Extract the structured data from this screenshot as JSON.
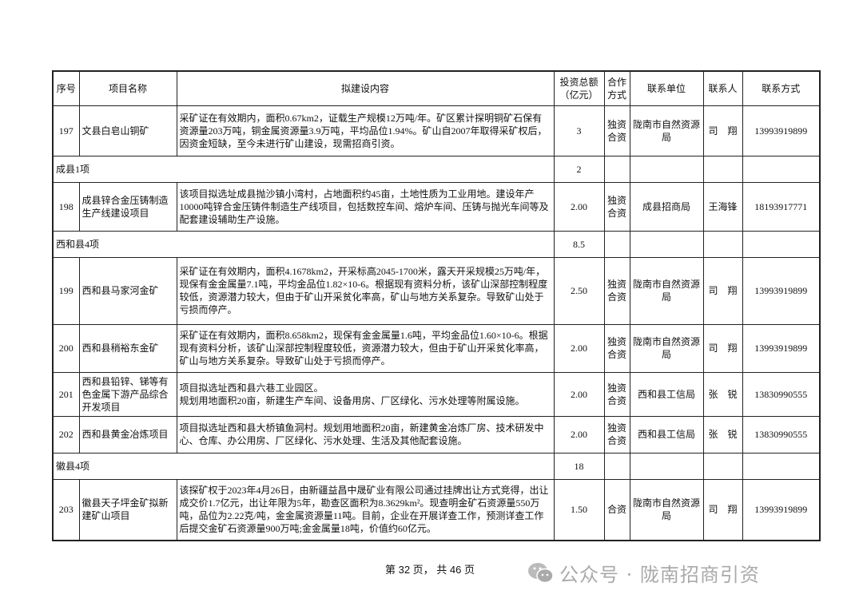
{
  "table": {
    "headers": [
      "序号",
      "项目名称",
      "拟建设内容",
      "投资总额（亿元）",
      "合作方式",
      "联系单位",
      "联系人",
      "联系方式"
    ],
    "rows": [
      {
        "type": "item",
        "no": "197",
        "name": "文县白皂山铜矿",
        "content": "采矿证在有效期内，面积0.67km2，证载生产规模12万吨/年。矿区累计探明铜矿石保有资源量203万吨，铜金属资源量3.9万吨，平均品位1.94%。矿山自2007年取得采矿权后，因资金短缺，至今未进行矿山建设，现需招商引资。",
        "invest": "3",
        "coop": "独资合资",
        "unit": "陇南市自然资源局",
        "person": "司　翔",
        "phone": "13993919899"
      },
      {
        "type": "group",
        "label": "成县1项",
        "invest": "2"
      },
      {
        "type": "item",
        "no": "198",
        "name": "成县锌合金压铸制造生产线建设项目",
        "content": "该项目拟选址成县抛沙镇小湾村，占地面积约45亩，土地性质为工业用地。建设年产10000吨锌合金压铸件制造生产线项目，包括数控车间、熔炉车间、压铸与抛光车间等及配套建设辅助生产设施。",
        "invest": "2.00",
        "coop": "独资合资",
        "unit": "成县招商局",
        "person": "王海锋",
        "phone": "18193917771"
      },
      {
        "type": "group",
        "label": "西和县4项",
        "invest": "8.5"
      },
      {
        "type": "item",
        "no": "199",
        "name": "西和县马家河金矿",
        "content": "采矿证在有效期内，面积4.1678km2，开采标高2045-1700米，露天开采规模25万吨/年，现保有金金属量7.1吨，平均金品位1.82×10-6。根据现有资料分析，该矿山深部控制程度较低，资源潜力较大，但由于矿山开采贫化率高，矿山与地方关系复杂。导致矿山处于亏损而停产。",
        "invest": "2.50",
        "coop": "独资合资",
        "unit": "陇南市自然资源局",
        "person": "司　翔",
        "phone": "13993919899"
      },
      {
        "type": "item",
        "no": "200",
        "name": "西和县稍裕东金矿",
        "content": "采矿证在有效期内，面积8.658km2，现保有金金属量1.6吨，平均金品位1.60×10-6。根据现有资料分析，该矿山深部控制程度较低，资源潜力较大，但由于矿山开采贫化率高，矿山与地方关系复杂。导致矿山处于亏损而停产。",
        "invest": "2.00",
        "coop": "独资合资",
        "unit": "陇南市自然资源局",
        "person": "司　翔",
        "phone": "13993919899"
      },
      {
        "type": "item",
        "no": "201",
        "name": "西和县铅锌、锑等有色金属下游产品综合开发项目",
        "content": "项目拟选址西和县六巷工业园区。\n规划用地面积20亩，新建生产车间、设备用房、厂区绿化、污水处理等附属设施。",
        "invest": "2.00",
        "coop": "独资合资",
        "unit": "西和县工信局",
        "person": "张　锐",
        "phone": "13830990555"
      },
      {
        "type": "item",
        "no": "202",
        "name": "西和县黄金冶炼项目",
        "content": "项目拟选址西和县大桥镇鱼洞村。规划用地面积20亩，新建黄金冶炼厂房、技术研发中心、仓库、办公用房、厂区绿化、污水处理、生活及其他配套设施。",
        "invest": "2.00",
        "coop": "独资合资",
        "unit": "西和县工信局",
        "person": "张　锐",
        "phone": "13830990555"
      },
      {
        "type": "group",
        "label": "徽县4项",
        "invest": "18"
      },
      {
        "type": "item",
        "no": "203",
        "name": "徽县天子坪金矿拟新建矿山项目",
        "content": "该探矿权于2023年4月26日，由新疆益昌中晟矿业有限公司通过挂牌出让方式竞得，出让成交价1.7亿元，出让年限为5年，勘查区面积为8.3629km²。现查明金矿石资源量550万吨，品位为2.22克/吨，金金属资源量11吨。目前，企业在开展详查工作，预测详查工作后提交金矿石资源量900万吨;金金属量18吨，价值约60亿元。",
        "invest": "1.50",
        "coop": "合资",
        "unit": "陇南市自然资源局",
        "person": "司　翔",
        "phone": "13993919899"
      }
    ]
  },
  "footer": {
    "page_text": "第 32 页， 共 46 页"
  },
  "watermark": {
    "text": "公众号 · 陇南招商引资",
    "icon": "wechat-icon"
  }
}
